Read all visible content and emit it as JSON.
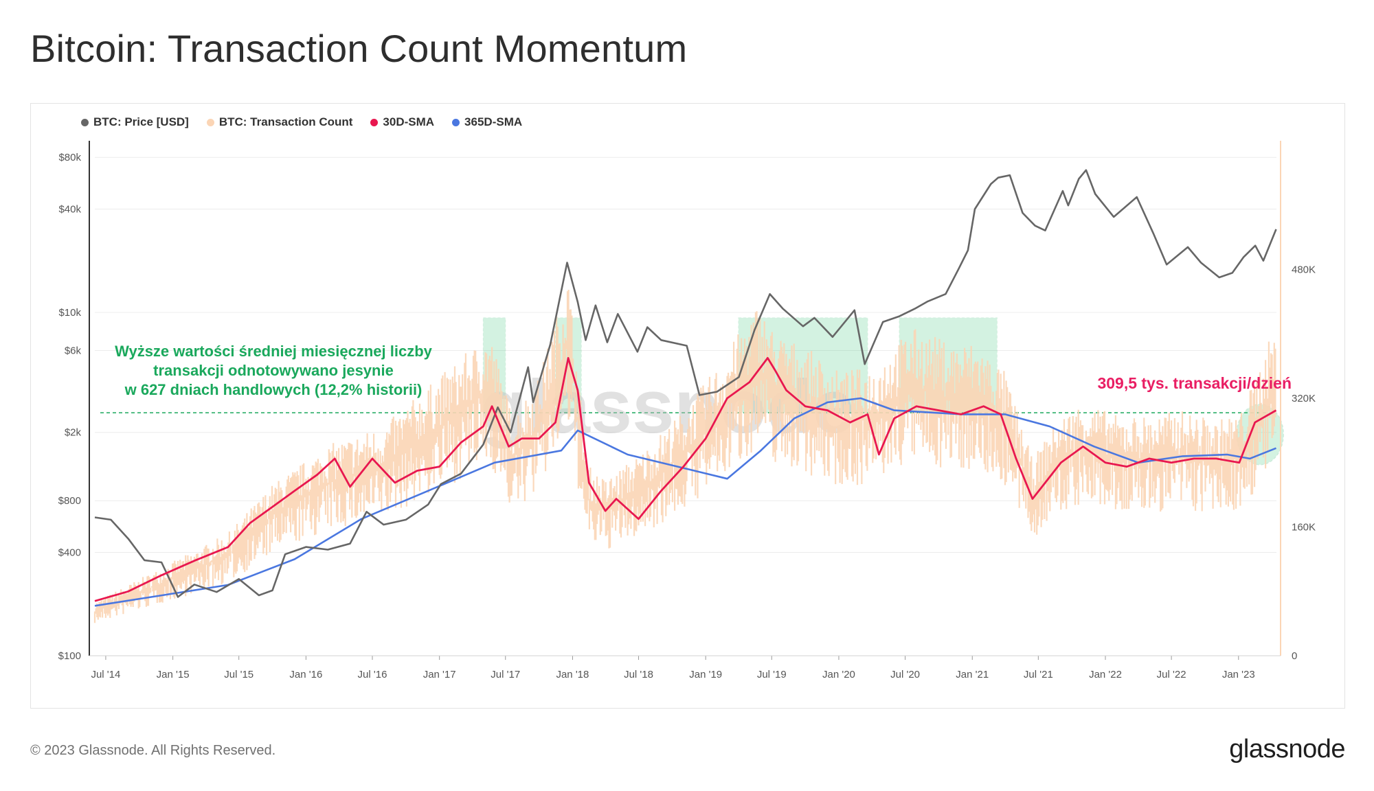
{
  "title": "Bitcoin: Transaction Count Momentum",
  "footer": {
    "copyright": "© 2023 Glassnode. All Rights Reserved.",
    "logo": "glassnode"
  },
  "watermark": "glassnode",
  "legend": [
    {
      "label": "BTC: Price [USD]",
      "color": "#666666"
    },
    {
      "label": "BTC: Transaction Count",
      "color": "#fbd5b5"
    },
    {
      "label": "30D-SMA",
      "color": "#e8174f"
    },
    {
      "label": "365D-SMA",
      "color": "#4a77e0"
    }
  ],
  "annotations": {
    "green_note": [
      "Wyższe wartości średniej miesięcznej liczby",
      "transakcji odnotowywano jesynie",
      "w 627 dniach handlowych (12,2% historii)"
    ],
    "red_note": "309,5 tys. transakcji/dzień"
  },
  "chart_data": {
    "type": "line",
    "x_range": [
      "2014-06-01",
      "2023-04-15"
    ],
    "x_ticks": [
      "Jul '14",
      "Jan '15",
      "Jul '15",
      "Jan '16",
      "Jul '16",
      "Jan '17",
      "Jul '17",
      "Jan '18",
      "Jul '18",
      "Jan '19",
      "Jul '19",
      "Jan '20",
      "Jul '20",
      "Jan '21",
      "Jul '21",
      "Jan '22",
      "Jul '22",
      "Jan '23"
    ],
    "x_tick_dates": [
      "2014-07-01",
      "2015-01-01",
      "2015-07-01",
      "2016-01-01",
      "2016-07-01",
      "2017-01-01",
      "2017-07-01",
      "2018-01-01",
      "2018-07-01",
      "2019-01-01",
      "2019-07-01",
      "2020-01-01",
      "2020-07-01",
      "2021-01-01",
      "2021-07-01",
      "2022-01-01",
      "2022-07-01",
      "2023-01-01"
    ],
    "y_left": {
      "scale": "log",
      "range": [
        100,
        100000
      ],
      "ticks": [
        100,
        400,
        800,
        2000,
        6000,
        10000,
        40000,
        80000
      ],
      "tick_labels": [
        "$100",
        "$400",
        "$800",
        "$2k",
        "$6k",
        "$10k",
        "$40k",
        "$80k"
      ]
    },
    "y_right": {
      "scale": "linear",
      "range": [
        0,
        640000
      ],
      "ticks": [
        0,
        160000,
        320000,
        480000
      ],
      "tick_labels": [
        "0",
        "160K",
        "320K",
        "480K"
      ]
    },
    "threshold": 302000,
    "highlight_periods": [
      {
        "start": "2017-05-01",
        "end": "2017-07-01"
      },
      {
        "start": "2017-11-15",
        "end": "2018-01-25"
      },
      {
        "start": "2019-04-01",
        "end": "2020-03-20"
      },
      {
        "start": "2020-06-15",
        "end": "2021-03-10"
      }
    ],
    "series": [
      {
        "name": "BTC: Price [USD]",
        "axis": "left",
        "dates": [
          "2014-06-01",
          "2014-07-15",
          "2014-09-01",
          "2014-10-15",
          "2014-12-01",
          "2015-01-15",
          "2015-03-01",
          "2015-05-01",
          "2015-07-01",
          "2015-08-25",
          "2015-10-01",
          "2015-11-05",
          "2016-01-01",
          "2016-03-01",
          "2016-05-01",
          "2016-06-15",
          "2016-08-01",
          "2016-10-01",
          "2016-12-01",
          "2017-01-05",
          "2017-03-01",
          "2017-05-01",
          "2017-06-10",
          "2017-07-15",
          "2017-09-01",
          "2017-09-15",
          "2017-11-01",
          "2017-12-17",
          "2018-01-15",
          "2018-02-06",
          "2018-03-05",
          "2018-04-06",
          "2018-05-05",
          "2018-06-28",
          "2018-07-25",
          "2018-09-01",
          "2018-11-10",
          "2018-12-15",
          "2019-02-01",
          "2019-04-02",
          "2019-05-15",
          "2019-06-26",
          "2019-08-01",
          "2019-09-25",
          "2019-10-26",
          "2019-12-15",
          "2020-02-13",
          "2020-03-12",
          "2020-05-01",
          "2020-06-15",
          "2020-07-27",
          "2020-09-01",
          "2020-10-20",
          "2020-11-25",
          "2020-12-20",
          "2021-01-08",
          "2021-02-21",
          "2021-03-13",
          "2021-04-14",
          "2021-05-19",
          "2021-06-22",
          "2021-07-20",
          "2021-09-06",
          "2021-09-21",
          "2021-10-20",
          "2021-11-09",
          "2021-12-04",
          "2022-01-24",
          "2022-03-28",
          "2022-05-12",
          "2022-06-18",
          "2022-08-15",
          "2022-09-20",
          "2022-11-09",
          "2022-12-15",
          "2023-01-15",
          "2023-02-16",
          "2023-03-10",
          "2023-04-14"
        ],
        "values": [
          640,
          620,
          480,
          360,
          350,
          220,
          260,
          235,
          280,
          225,
          240,
          390,
          430,
          415,
          450,
          690,
          580,
          620,
          760,
          1000,
          1150,
          1700,
          2800,
          2000,
          4800,
          3000,
          6500,
          19500,
          11500,
          6900,
          11000,
          6700,
          9800,
          5900,
          8200,
          6900,
          6400,
          3300,
          3450,
          4200,
          7900,
          12800,
          10500,
          8300,
          9300,
          7200,
          10300,
          5000,
          8800,
          9500,
          10500,
          11600,
          12800,
          18000,
          23000,
          40000,
          56000,
          61000,
          63000,
          38000,
          32000,
          30000,
          51000,
          42000,
          60000,
          67500,
          49000,
          36000,
          47000,
          29000,
          19000,
          24000,
          19500,
          16000,
          17000,
          21000,
          24500,
          20000,
          30500
        ]
      },
      {
        "name": "BTC: Transaction Count",
        "axis": "right",
        "dates": [
          "2014-06-01",
          "2014-12-01",
          "2015-06-01",
          "2015-10-01",
          "2016-03-01",
          "2016-08-01",
          "2017-01-01",
          "2017-05-20",
          "2017-07-20",
          "2017-10-01",
          "2017-12-20",
          "2018-02-10",
          "2018-04-01",
          "2018-07-01",
          "2018-11-01",
          "2019-02-01",
          "2019-05-25",
          "2019-07-10",
          "2019-10-01",
          "2020-01-01",
          "2020-04-01",
          "2020-07-20",
          "2020-11-01",
          "2021-01-15",
          "2021-04-01",
          "2021-06-15",
          "2021-08-20",
          "2021-11-01",
          "2022-02-01",
          "2022-05-01",
          "2022-08-01",
          "2022-11-01",
          "2023-01-10",
          "2023-04-14"
        ],
        "values": [
          55000,
          90000,
          125000,
          175000,
          215000,
          235000,
          285000,
          330000,
          245000,
          285000,
          390000,
          195000,
          180000,
          205000,
          250000,
          295000,
          360000,
          330000,
          315000,
          290000,
          295000,
          335000,
          320000,
          320000,
          290000,
          200000,
          240000,
          260000,
          245000,
          245000,
          250000,
          240000,
          250000,
          340000
        ]
      },
      {
        "name": "30D-SMA",
        "axis": "right",
        "dates": [
          "2014-06-01",
          "2014-09-01",
          "2014-12-01",
          "2015-03-01",
          "2015-06-01",
          "2015-08-01",
          "2015-10-01",
          "2015-12-01",
          "2016-02-01",
          "2016-03-20",
          "2016-05-01",
          "2016-07-01",
          "2016-09-01",
          "2016-11-01",
          "2017-01-01",
          "2017-03-01",
          "2017-05-01",
          "2017-05-25",
          "2017-07-10",
          "2017-08-15",
          "2017-10-01",
          "2017-11-15",
          "2017-12-20",
          "2018-01-15",
          "2018-02-15",
          "2018-04-01",
          "2018-05-01",
          "2018-07-01",
          "2018-09-01",
          "2018-11-01",
          "2019-01-01",
          "2019-03-01",
          "2019-05-01",
          "2019-06-20",
          "2019-07-10",
          "2019-08-10",
          "2019-10-01",
          "2019-12-01",
          "2020-02-01",
          "2020-03-20",
          "2020-04-20",
          "2020-06-01",
          "2020-08-01",
          "2020-10-01",
          "2020-12-01",
          "2021-02-01",
          "2021-03-20",
          "2021-05-01",
          "2021-06-15",
          "2021-07-20",
          "2021-09-01",
          "2021-11-01",
          "2022-01-01",
          "2022-03-01",
          "2022-05-01",
          "2022-07-01",
          "2022-09-01",
          "2022-11-01",
          "2023-01-03",
          "2023-02-15",
          "2023-04-14"
        ],
        "values": [
          68000,
          80000,
          100000,
          118000,
          135000,
          165000,
          185000,
          205000,
          225000,
          245000,
          210000,
          245000,
          215000,
          230000,
          235000,
          265000,
          285000,
          310000,
          260000,
          270000,
          270000,
          290000,
          370000,
          330000,
          215000,
          180000,
          195000,
          170000,
          205000,
          235000,
          270000,
          320000,
          340000,
          370000,
          355000,
          330000,
          310000,
          305000,
          290000,
          300000,
          250000,
          295000,
          310000,
          305000,
          300000,
          310000,
          300000,
          245000,
          195000,
          215000,
          240000,
          260000,
          240000,
          235000,
          245000,
          240000,
          245000,
          245000,
          240000,
          290000,
          305000
        ]
      },
      {
        "name": "365D-SMA",
        "axis": "right",
        "dates": [
          "2014-06-01",
          "2014-12-01",
          "2015-06-01",
          "2015-12-01",
          "2016-06-01",
          "2016-12-01",
          "2017-06-01",
          "2017-12-01",
          "2018-01-15",
          "2018-06-01",
          "2018-12-01",
          "2019-03-01",
          "2019-06-01",
          "2019-09-01",
          "2019-12-01",
          "2020-03-01",
          "2020-06-01",
          "2020-12-01",
          "2021-04-01",
          "2021-08-01",
          "2021-12-01",
          "2022-04-01",
          "2022-08-01",
          "2022-12-01",
          "2023-02-01",
          "2023-04-14"
        ],
        "values": [
          62000,
          75000,
          88000,
          120000,
          170000,
          205000,
          240000,
          255000,
          280000,
          250000,
          230000,
          220000,
          255000,
          295000,
          315000,
          320000,
          305000,
          300000,
          300000,
          285000,
          260000,
          240000,
          248000,
          250000,
          245000,
          258000
        ]
      }
    ]
  }
}
